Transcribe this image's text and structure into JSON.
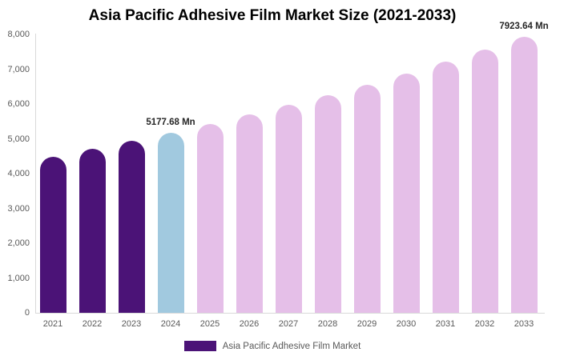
{
  "title": "Asia Pacific Adhesive Film Market Size (2021-2033)",
  "chart_data": {
    "type": "bar",
    "title": "Asia Pacific Adhesive Film Market Size (2021-2033)",
    "xlabel": "",
    "ylabel": "",
    "ylim": [
      0,
      8000
    ],
    "grid": false,
    "legend_position": "bottom-center",
    "categories": [
      "2021",
      "2022",
      "2023",
      "2024",
      "2025",
      "2026",
      "2027",
      "2028",
      "2029",
      "2030",
      "2031",
      "2032",
      "2033"
    ],
    "values": [
      4490,
      4710,
      4940,
      5177.68,
      5428,
      5691,
      5967,
      6256,
      6559,
      6876,
      7209,
      7558,
      7923.64
    ],
    "bar_colors": [
      "#4B1377",
      "#4B1377",
      "#4B1377",
      "#A1C9DF",
      "#E5BFE8",
      "#E5BFE8",
      "#E5BFE8",
      "#E5BFE8",
      "#E5BFE8",
      "#E5BFE8",
      "#E5BFE8",
      "#E5BFE8",
      "#E5BFE8"
    ],
    "value_labels": [
      {
        "category": "2024",
        "text": "5177.68 Mn"
      },
      {
        "category": "2033",
        "text": "7923.64 Mn"
      }
    ],
    "y_tick_labels": [
      "0",
      "1,000",
      "2,000",
      "3,000",
      "4,000",
      "5,000",
      "6,000",
      "7,000",
      "8,000"
    ],
    "y_tick_values": [
      0,
      1000,
      2000,
      3000,
      4000,
      5000,
      6000,
      7000,
      8000
    ]
  },
  "legend": {
    "label": "Asia Pacific Adhesive Film Market",
    "swatch_color": "#4B1377"
  },
  "colors": {
    "historical_bar": "#4B1377",
    "current_year_bar": "#A1C9DF",
    "forecast_bar": "#E5BFE8",
    "axis_line": "#d9d9d9",
    "tick_text": "#595959",
    "value_label_text": "#262626",
    "title_text": "#000000"
  }
}
